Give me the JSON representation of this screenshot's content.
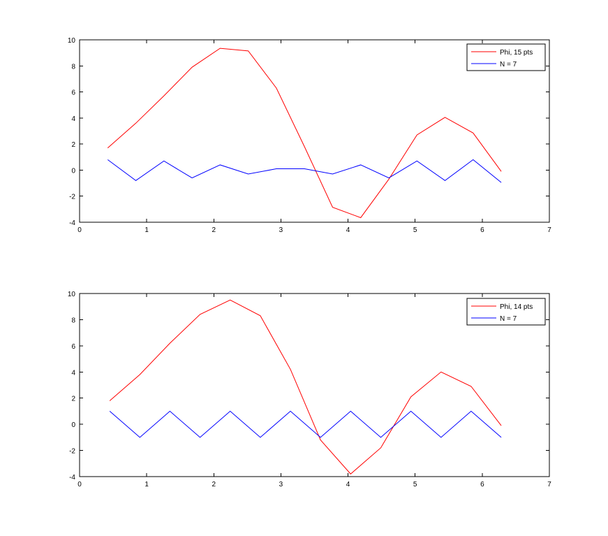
{
  "chart_data": [
    {
      "type": "line",
      "title": "",
      "xlabel": "",
      "ylabel": "",
      "xlim": [
        0,
        7
      ],
      "ylim": [
        -4,
        10
      ],
      "xticks": [
        0,
        1,
        2,
        3,
        4,
        5,
        6,
        7
      ],
      "yticks": [
        -4,
        -2,
        0,
        2,
        4,
        6,
        8,
        10
      ],
      "xtick_labels": [
        "0",
        "1",
        "2",
        "3",
        "4",
        "5",
        "6",
        "7"
      ],
      "ytick_labels": [
        "-4",
        "-2",
        "0",
        "2",
        "4",
        "6",
        "8",
        "10"
      ],
      "grid": false,
      "legend_position": "top-right",
      "series": [
        {
          "name": "Phi, 15 pts",
          "color": "#ff0000",
          "x": [
            0.419,
            0.838,
            1.257,
            1.676,
            2.094,
            2.513,
            2.932,
            3.351,
            3.77,
            4.189,
            4.608,
            5.027,
            5.445,
            5.864,
            6.283
          ],
          "y": [
            1.7,
            3.6,
            5.7,
            7.9,
            9.35,
            9.15,
            6.3,
            1.8,
            -2.85,
            -3.65,
            -0.7,
            2.7,
            4.05,
            2.85,
            -0.1
          ]
        },
        {
          "name": "N = 7",
          "color": "#0000ff",
          "x": [
            0.419,
            0.838,
            1.257,
            1.676,
            2.094,
            2.513,
            2.932,
            3.351,
            3.77,
            4.189,
            4.608,
            5.027,
            5.445,
            5.864,
            6.283
          ],
          "y": [
            0.8,
            -0.8,
            0.7,
            -0.6,
            0.4,
            -0.3,
            0.1,
            0.1,
            -0.3,
            0.4,
            -0.6,
            0.7,
            -0.8,
            0.8,
            -0.95
          ]
        }
      ]
    },
    {
      "type": "line",
      "title": "",
      "xlabel": "",
      "ylabel": "",
      "xlim": [
        0,
        7
      ],
      "ylim": [
        -4,
        10
      ],
      "xticks": [
        0,
        1,
        2,
        3,
        4,
        5,
        6,
        7
      ],
      "yticks": [
        -4,
        -2,
        0,
        2,
        4,
        6,
        8,
        10
      ],
      "xtick_labels": [
        "0",
        "1",
        "2",
        "3",
        "4",
        "5",
        "6",
        "7"
      ],
      "ytick_labels": [
        "-4",
        "-2",
        "0",
        "2",
        "4",
        "6",
        "8",
        "10"
      ],
      "grid": false,
      "legend_position": "top-right",
      "series": [
        {
          "name": "Phi, 14 pts",
          "color": "#ff0000",
          "x": [
            0.449,
            0.898,
            1.346,
            1.795,
            2.244,
            2.693,
            3.142,
            3.59,
            4.039,
            4.488,
            4.937,
            5.386,
            5.834,
            6.283
          ],
          "y": [
            1.8,
            3.8,
            6.2,
            8.4,
            9.5,
            8.3,
            4.2,
            -1.2,
            -3.8,
            -1.8,
            2.1,
            4.0,
            2.9,
            -0.1
          ]
        },
        {
          "name": "N = 7",
          "color": "#0000ff",
          "x": [
            0.449,
            0.898,
            1.346,
            1.795,
            2.244,
            2.693,
            3.142,
            3.59,
            4.039,
            4.488,
            4.937,
            5.386,
            5.834,
            6.283
          ],
          "y": [
            1.0,
            -1.0,
            1.0,
            -1.0,
            1.0,
            -1.0,
            1.0,
            -1.0,
            1.0,
            -1.0,
            1.0,
            -1.0,
            1.0,
            -1.0
          ]
        }
      ]
    }
  ]
}
